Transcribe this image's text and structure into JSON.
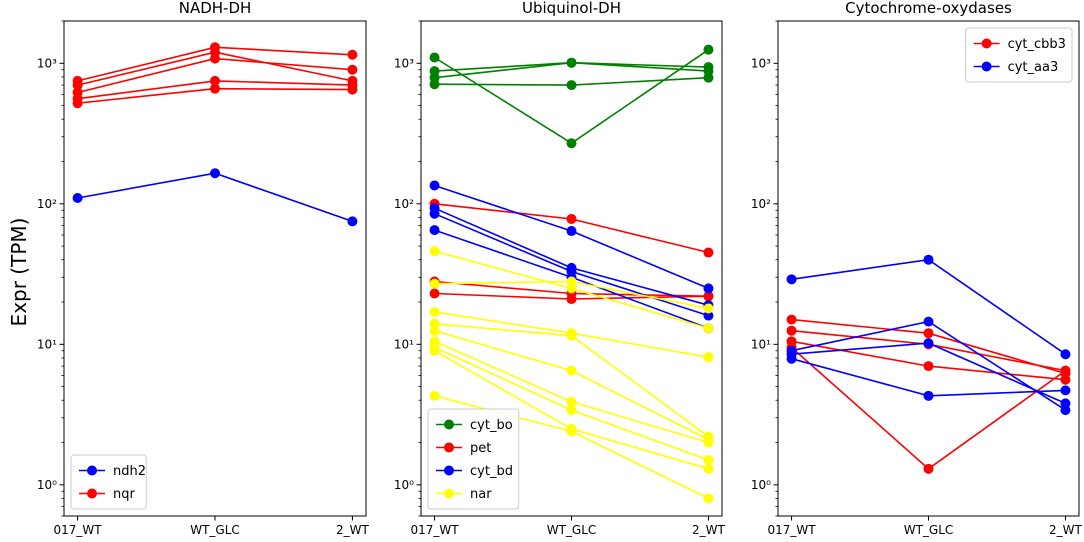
{
  "figure": {
    "ylabel": "Expr (TPM)"
  },
  "chart_data": [
    {
      "type": "line",
      "title": "NADH-DH",
      "yscale": "log",
      "ylim": [
        0.6,
        2000
      ],
      "categories": [
        "017_WT",
        "WT_GLC",
        "2_WT"
      ],
      "yticks": [
        {
          "value": 1,
          "label": "10⁰"
        },
        {
          "value": 10,
          "label": "10¹"
        },
        {
          "value": 100,
          "label": "10²"
        },
        {
          "value": 1000,
          "label": "10³"
        }
      ],
      "legend": {
        "position": "lower-left",
        "entries": [
          {
            "name": "ndh2",
            "color": "#0000ff"
          },
          {
            "name": "nqr",
            "color": "#ff0000"
          }
        ]
      },
      "series": [
        {
          "group": "ndh2",
          "color": "#0000ff",
          "values": [
            110,
            165,
            75
          ]
        },
        {
          "group": "nqr",
          "color": "#ff0000",
          "values": [
            750,
            1300,
            1150
          ]
        },
        {
          "group": "nqr",
          "color": "#ff0000",
          "values": [
            700,
            1200,
            750
          ]
        },
        {
          "group": "nqr",
          "color": "#ff0000",
          "values": [
            620,
            1080,
            900
          ]
        },
        {
          "group": "nqr",
          "color": "#ff0000",
          "values": [
            560,
            750,
            700
          ]
        },
        {
          "group": "nqr",
          "color": "#ff0000",
          "values": [
            520,
            660,
            650
          ]
        }
      ]
    },
    {
      "type": "line",
      "title": "Ubiquinol-DH",
      "yscale": "log",
      "ylim": [
        0.6,
        2000
      ],
      "categories": [
        "017_WT",
        "WT_GLC",
        "2_WT"
      ],
      "yticks": [
        {
          "value": 1,
          "label": "10⁰"
        },
        {
          "value": 10,
          "label": "10¹"
        },
        {
          "value": 100,
          "label": "10²"
        },
        {
          "value": 1000,
          "label": "10³"
        }
      ],
      "legend": {
        "position": "lower-left",
        "entries": [
          {
            "name": "cyt_bo",
            "color": "#008000"
          },
          {
            "name": "pet",
            "color": "#ff0000"
          },
          {
            "name": "cyt_bd",
            "color": "#0000ff"
          },
          {
            "name": "nar",
            "color": "#ffff00"
          }
        ]
      },
      "series": [
        {
          "group": "cyt_bo",
          "color": "#008000",
          "values": [
            1100,
            270,
            1250
          ]
        },
        {
          "group": "cyt_bo",
          "color": "#008000",
          "values": [
            880,
            1010,
            940
          ]
        },
        {
          "group": "cyt_bo",
          "color": "#008000",
          "values": [
            790,
            1010,
            880
          ]
        },
        {
          "group": "cyt_bo",
          "color": "#008000",
          "values": [
            710,
            700,
            790
          ]
        },
        {
          "group": "pet",
          "color": "#ff0000",
          "values": [
            100,
            78,
            45
          ]
        },
        {
          "group": "pet",
          "color": "#ff0000",
          "values": [
            28,
            23,
            22
          ]
        },
        {
          "group": "pet",
          "color": "#ff0000",
          "values": [
            23,
            21,
            22
          ]
        },
        {
          "group": "cyt_bd",
          "color": "#0000ff",
          "values": [
            135,
            64,
            25
          ]
        },
        {
          "group": "cyt_bd",
          "color": "#0000ff",
          "values": [
            93,
            35,
            19
          ]
        },
        {
          "group": "cyt_bd",
          "color": "#0000ff",
          "values": [
            85,
            33,
            16
          ]
        },
        {
          "group": "cyt_bd",
          "color": "#0000ff",
          "values": [
            65,
            30,
            13
          ]
        },
        {
          "group": "nar",
          "color": "#ffff00",
          "values": [
            46,
            25,
            13
          ]
        },
        {
          "group": "nar",
          "color": "#ffff00",
          "values": [
            27,
            28,
            18
          ]
        },
        {
          "group": "nar",
          "color": "#ffff00",
          "values": [
            17,
            12,
            8.1
          ]
        },
        {
          "group": "nar",
          "color": "#ffff00",
          "values": [
            14,
            11.5,
            2.2
          ]
        },
        {
          "group": "nar",
          "color": "#ffff00",
          "values": [
            12.5,
            6.5,
            2.1
          ]
        },
        {
          "group": "nar",
          "color": "#ffff00",
          "values": [
            10.5,
            3.9,
            2.0
          ]
        },
        {
          "group": "nar",
          "color": "#ffff00",
          "values": [
            9.5,
            3.4,
            1.5
          ]
        },
        {
          "group": "nar",
          "color": "#ffff00",
          "values": [
            9.0,
            2.5,
            1.3
          ]
        },
        {
          "group": "nar",
          "color": "#ffff00",
          "values": [
            4.3,
            2.4,
            0.8
          ]
        }
      ]
    },
    {
      "type": "line",
      "title": "Cytochrome-oxydases",
      "yscale": "log",
      "ylim": [
        0.6,
        2000
      ],
      "categories": [
        "017_WT",
        "WT_GLC",
        "2_WT"
      ],
      "yticks": [
        {
          "value": 1,
          "label": "10⁰"
        },
        {
          "value": 10,
          "label": "10¹"
        },
        {
          "value": 100,
          "label": "10²"
        },
        {
          "value": 1000,
          "label": "10³"
        }
      ],
      "legend": {
        "position": "upper-right",
        "entries": [
          {
            "name": "cyt_cbb3",
            "color": "#ff0000"
          },
          {
            "name": "cyt_aa3",
            "color": "#0000ff"
          }
        ]
      },
      "series": [
        {
          "group": "cyt_cbb3",
          "color": "#ff0000",
          "values": [
            15,
            12,
            6.2
          ]
        },
        {
          "group": "cyt_cbb3",
          "color": "#ff0000",
          "values": [
            12.5,
            10,
            6.5
          ]
        },
        {
          "group": "cyt_cbb3",
          "color": "#ff0000",
          "values": [
            10.5,
            7.0,
            5.6
          ]
        },
        {
          "group": "cyt_cbb3",
          "color": "#ff0000",
          "values": [
            9.5,
            1.3,
            6.5
          ]
        },
        {
          "group": "cyt_aa3",
          "color": "#0000ff",
          "values": [
            29,
            40,
            8.5
          ]
        },
        {
          "group": "cyt_aa3",
          "color": "#0000ff",
          "values": [
            9.0,
            14.5,
            3.4
          ]
        },
        {
          "group": "cyt_aa3",
          "color": "#0000ff",
          "values": [
            8.5,
            10.2,
            3.8
          ]
        },
        {
          "group": "cyt_aa3",
          "color": "#0000ff",
          "values": [
            7.9,
            4.3,
            4.7
          ]
        }
      ]
    }
  ]
}
